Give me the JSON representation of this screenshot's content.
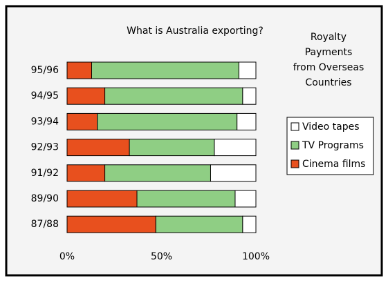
{
  "chart_data": {
    "type": "stacked_barh",
    "title": "What is Australia exporting?",
    "annotation": [
      "Royalty",
      "Payments",
      "from Overseas",
      "Countries"
    ],
    "categories": [
      "95/96",
      "94/95",
      "93/94",
      "92/93",
      "91/92",
      "89/90",
      "87/88"
    ],
    "series": [
      {
        "name": "Cinema films",
        "color": "#e8501e",
        "values": [
          13,
          20,
          16,
          33,
          20,
          37,
          47
        ]
      },
      {
        "name": "TV Programs",
        "color": "#8fce84",
        "values": [
          78,
          73,
          74,
          45,
          56,
          52,
          46
        ]
      },
      {
        "name": "Video tapes",
        "color": "#ffffff",
        "values": [
          9,
          7,
          10,
          22,
          24,
          11,
          7
        ]
      }
    ],
    "xlim": [
      0,
      100
    ],
    "xticks": [
      {
        "value": 0,
        "label": "0%"
      },
      {
        "value": 50,
        "label": "50%"
      },
      {
        "value": 100,
        "label": "100%"
      }
    ],
    "legend": "right"
  }
}
